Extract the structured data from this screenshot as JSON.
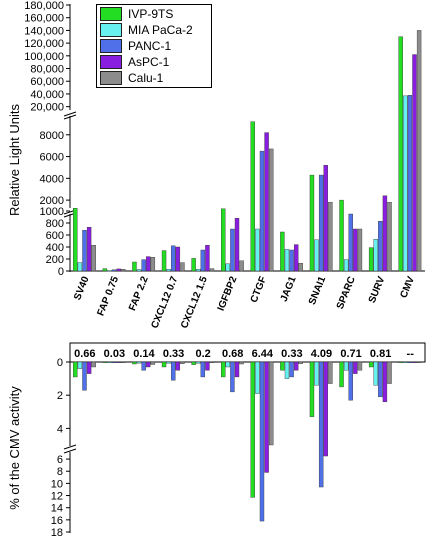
{
  "chart_data": [
    {
      "type": "bar",
      "ylabel": "Relative Light Units",
      "y_axis_broken": true,
      "y_segments": [
        {
          "range": [
            0,
            1000
          ],
          "ticks": [
            0,
            200,
            400,
            600,
            800,
            1000
          ]
        },
        {
          "range": [
            1000,
            10000
          ],
          "ticks": [
            2000,
            4000,
            6000,
            8000
          ]
        },
        {
          "range": [
            10000,
            180000
          ],
          "ticks": [
            20000,
            40000,
            60000,
            80000,
            100000,
            120000,
            140000,
            160000,
            180000
          ]
        }
      ],
      "categories": [
        "SV40",
        "FAP 0.75",
        "FAP 2.2",
        "CXCL12 0.7",
        "CXCL12 1.5",
        "IGFBP2",
        "CTGF",
        "JAG1",
        "SNAI1",
        "SPARC",
        "SURV",
        "CMV"
      ],
      "legend_position": "top-left",
      "series": [
        {
          "name": "IVP-9TS",
          "color": "#22dd22",
          "values": [
            1250,
            40,
            150,
            340,
            210,
            1200,
            9200,
            650,
            4300,
            2000,
            390,
            130000
          ]
        },
        {
          "name": "MIA PaCa-2",
          "color": "#66f0f0",
          "values": [
            140,
            10,
            25,
            30,
            30,
            120,
            700,
            360,
            520,
            190,
            530,
            37000
          ]
        },
        {
          "name": "PANC-1",
          "color": "#4f70e8",
          "values": [
            680,
            20,
            190,
            420,
            350,
            700,
            6500,
            350,
            4300,
            950,
            830,
            38000
          ]
        },
        {
          "name": "AsPC-1",
          "color": "#8a1ee0",
          "values": [
            730,
            35,
            240,
            400,
            430,
            880,
            8200,
            440,
            5200,
            700,
            2400,
            102000
          ]
        },
        {
          "name": "Calu-1",
          "color": "#8c8c8c",
          "values": [
            430,
            30,
            230,
            140,
            40,
            170,
            6700,
            130,
            1800,
            700,
            1800,
            140000
          ]
        }
      ]
    },
    {
      "type": "bar",
      "ylabel": "% of the CMV activity",
      "y_axis_broken": true,
      "inverted": true,
      "y_segments": [
        {
          "range": [
            0,
            5
          ],
          "ticks": [
            0,
            2,
            4
          ]
        },
        {
          "range": [
            5,
            18
          ],
          "ticks": [
            6,
            8,
            10,
            12,
            14,
            16,
            18
          ]
        }
      ],
      "categories": [
        "SV40",
        "FAP 0.75",
        "FAP 2.2",
        "CXCL12 0.7",
        "CXCL12 1.5",
        "IGFBP2",
        "CTGF",
        "JAG1",
        "SNAI1",
        "SPARC",
        "SURV",
        "CMV"
      ],
      "annotations": [
        "0.66",
        "0.03",
        "0.14",
        "0.33",
        "0.2",
        "0.68",
        "6.44",
        "0.33",
        "4.09",
        "0.71",
        "0.81",
        "--"
      ],
      "series": [
        {
          "name": "IVP-9TS",
          "color": "#22dd22",
          "values": [
            0.9,
            0.03,
            0.12,
            0.3,
            0.16,
            0.9,
            12.3,
            0.5,
            3.3,
            1.5,
            0.3,
            0
          ]
        },
        {
          "name": "MIA PaCa-2",
          "color": "#66f0f0",
          "values": [
            0.4,
            0.03,
            0.07,
            0.08,
            0.08,
            0.3,
            1.9,
            1.0,
            1.4,
            0.5,
            1.4,
            0
          ]
        },
        {
          "name": "PANC-1",
          "color": "#4f70e8",
          "values": [
            1.7,
            0.05,
            0.5,
            1.1,
            0.9,
            1.8,
            16.2,
            0.9,
            10.6,
            2.3,
            2.1,
            0
          ]
        },
        {
          "name": "AsPC-1",
          "color": "#8a1ee0",
          "values": [
            0.7,
            0.04,
            0.3,
            0.5,
            0.5,
            0.9,
            8.2,
            0.5,
            5.5,
            0.7,
            2.4,
            0
          ]
        },
        {
          "name": "Calu-1",
          "color": "#8c8c8c",
          "values": [
            0.3,
            0.02,
            0.15,
            0.1,
            0.03,
            0.12,
            5.0,
            0.1,
            1.3,
            0.5,
            1.3,
            0
          ]
        }
      ]
    }
  ]
}
